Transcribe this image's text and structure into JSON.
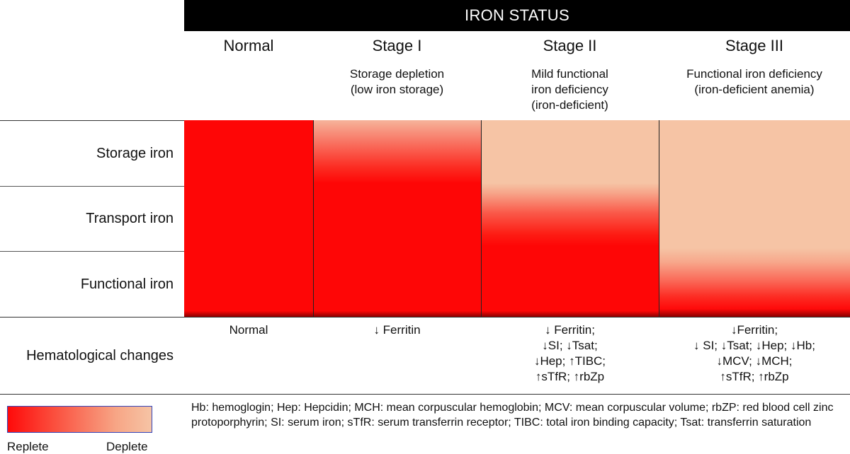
{
  "header": {
    "title": "IRON STATUS"
  },
  "stages": [
    {
      "title": "Normal",
      "description": ""
    },
    {
      "title": "Stage I",
      "description": "Storage depletion\n(low iron storage)"
    },
    {
      "title": "Stage II",
      "description": "Mild functional\niron deficiency\n(iron-deficient)"
    },
    {
      "title": "Stage III",
      "description": "Functional iron deficiency\n(iron-deficient anemia)"
    }
  ],
  "rows": [
    {
      "label": "Storage iron"
    },
    {
      "label": "Transport iron"
    },
    {
      "label": "Functional iron"
    }
  ],
  "hematological": {
    "label": "Hematological changes",
    "values": [
      "Normal",
      "↓ Ferritin",
      "↓ Ferritin;\n↓SI; ↓Tsat;\n↓Hep; ↑TIBC;\n↑sTfR; ↑rbZp",
      "↓Ferritin;\n↓ SI; ↓Tsat; ↓Hep; ↓Hb;\n↓MCV; ↓MCH;\n↑sTfR; ↑rbZp"
    ]
  },
  "legend": {
    "left_label": "Replete",
    "right_label": "Deplete",
    "colors": {
      "replete": "#fe0606",
      "deplete": "#f6c4a5"
    }
  },
  "footnote": "Hb: hemoglogin; Hep: Hepcidin; MCH: mean corpuscular hemoglobin; MCV: mean corpuscular volume; rbZP: red blood cell zinc protoporphyrin; SI: serum iron; sTfR: serum transferrin receptor; TIBC: total iron binding capacity; Tsat: transferrin saturation"
}
